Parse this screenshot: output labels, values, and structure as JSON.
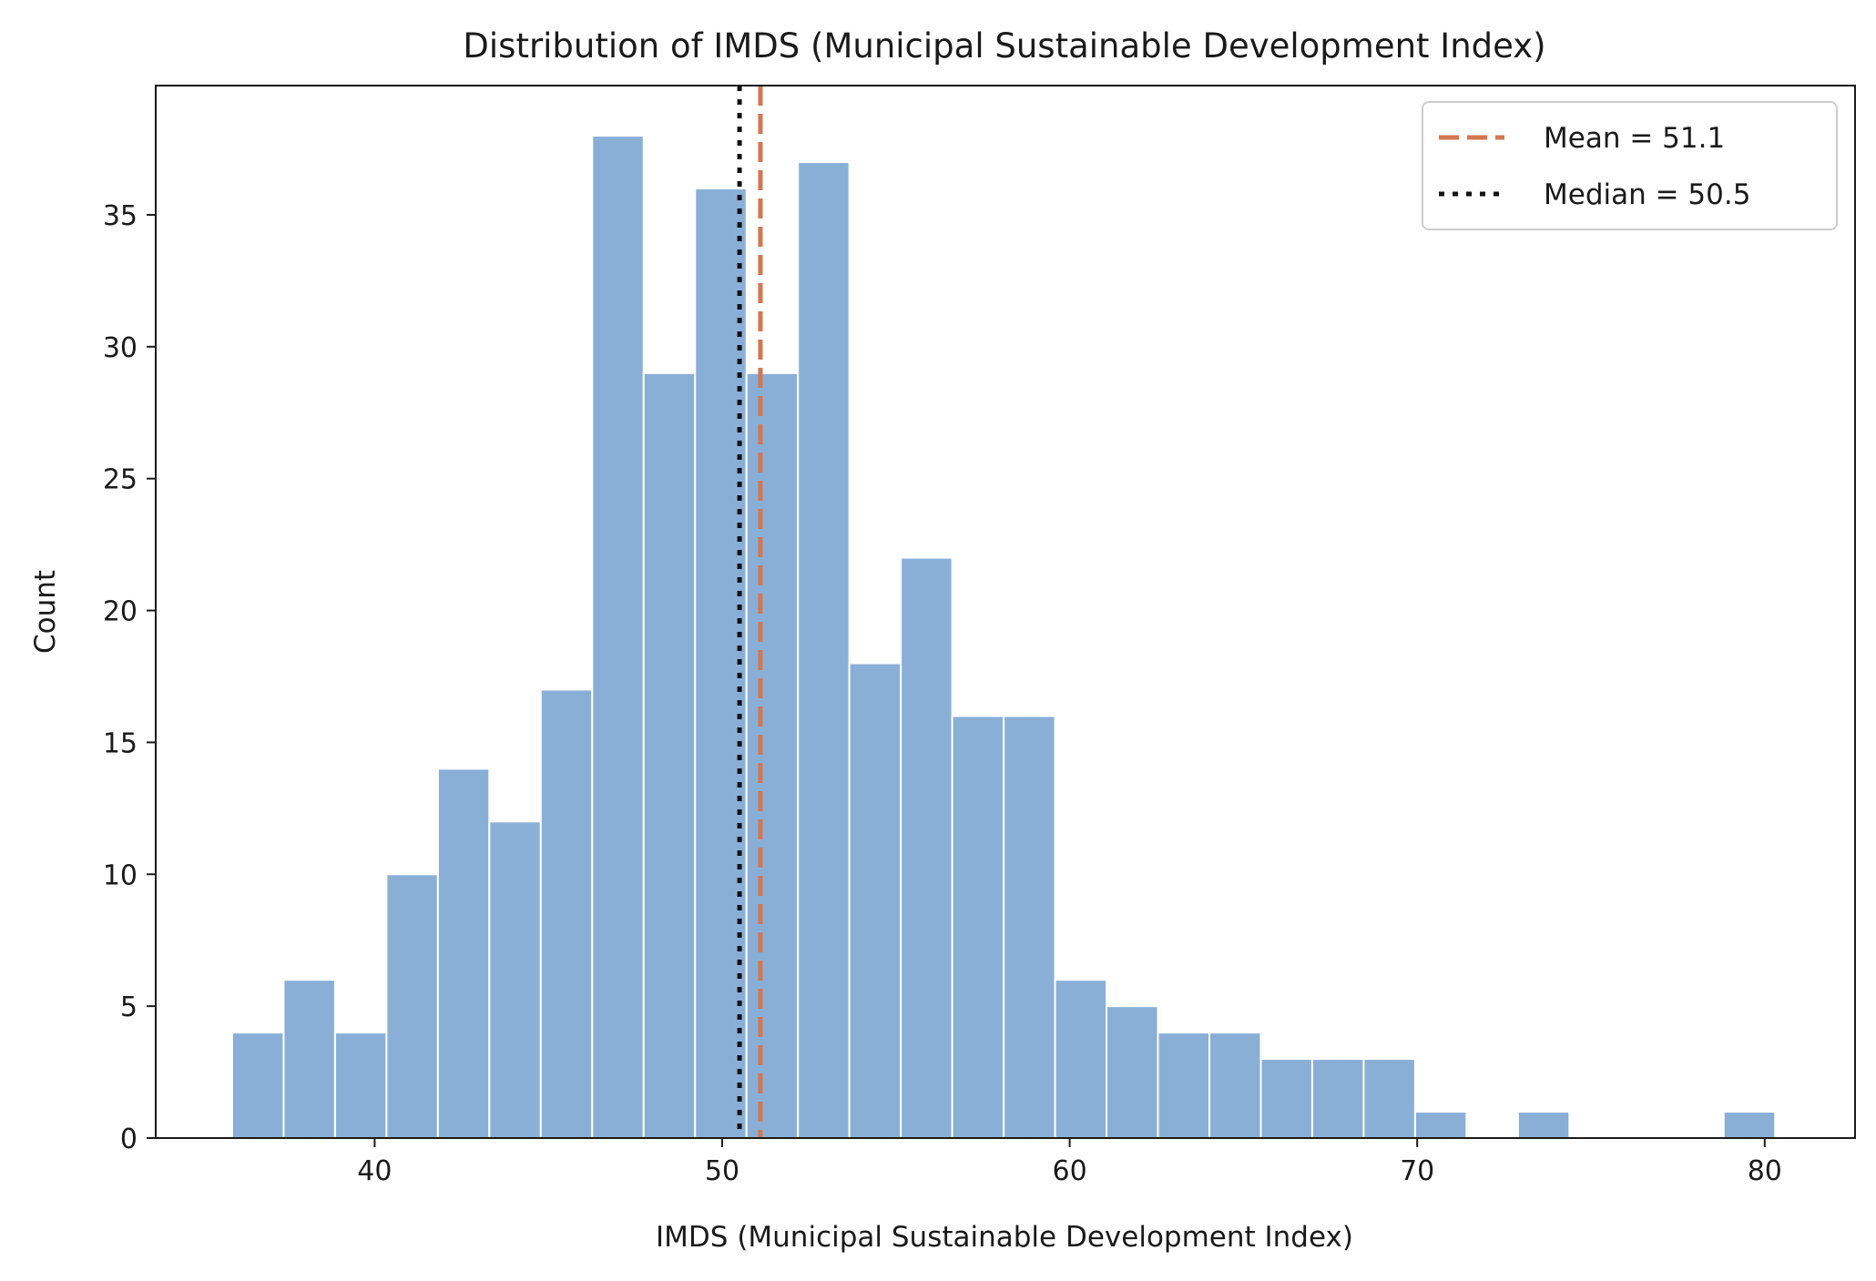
{
  "chart_data": {
    "type": "bar",
    "subtype": "histogram",
    "title": "Distribution of IMDS (Municipal Sustainable Development Index)",
    "xlabel": "IMDS (Municipal Sustainable Development Index)",
    "ylabel": "Count",
    "xlim": [
      33.7,
      82.6
    ],
    "ylim": [
      0,
      39.9
    ],
    "xticks": [
      40,
      50,
      60,
      70,
      80
    ],
    "yticks": [
      0,
      5,
      10,
      15,
      20,
      25,
      30,
      35
    ],
    "bin_start": 35.9,
    "bin_width": 1.48,
    "counts": [
      4,
      6,
      4,
      10,
      14,
      12,
      17,
      38,
      29,
      36,
      29,
      37,
      18,
      22,
      16,
      16,
      6,
      5,
      4,
      4,
      3,
      3,
      3,
      1,
      0,
      1,
      0,
      0,
      0,
      1
    ],
    "bar_color": "#8aafd7",
    "reference_lines": [
      {
        "label": "Mean = 51.1",
        "x": 51.1,
        "style": "dashed",
        "color": "#d4764f"
      },
      {
        "label": "Median = 50.5",
        "x": 50.5,
        "style": "dotted",
        "color": "#111111"
      }
    ],
    "legend_position": "top-right",
    "grid": false
  }
}
